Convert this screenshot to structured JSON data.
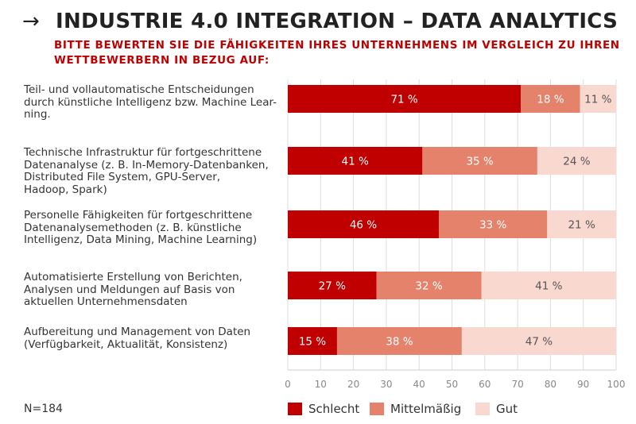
{
  "header": {
    "arrow": "→",
    "title": "INDUSTRIE 4.0 INTEGRATION – DATA ANALYTICS",
    "subtitle": "BITTE BEWERTEN SIE DIE FÄHIGKEITEN IHRES UNTERNEHMENS IM VERGLEICH ZU IHREN WETTBEWERBERN IN BEZUG AUF:"
  },
  "footer": {
    "sample_size": "N=184"
  },
  "colors": {
    "schlecht": "#c00000",
    "mittelmassig": "#e5826b",
    "gut": "#f9d8d0"
  },
  "chart_data": {
    "type": "bar",
    "orientation": "horizontal",
    "stacked": true,
    "categories": [
      "Teil- und vollautomatische Entscheidungen durch künstliche Intelligenz bzw. Machine Lear-ning.",
      "Technische Infrastruktur für fortgeschrittene Datenanalyse (z. B. In-Memory-Datenbanken, Distributed File System, GPU-Server, Hadoop, Spark)",
      "Personelle Fähigkeiten für fortgeschrittene Datenanalysemethoden (z. B. künstliche Intelligenz, Data Mining, Machine Learning)",
      "Automatisierte Erstellung von Berichten, Analysen und Meldungen auf Basis von aktuellen Unternehmensdaten",
      "Aufbereitung und Management von Daten (Verfügbarkeit, Aktualität, Konsistenz)"
    ],
    "category_lines": [
      [
        "Teil- und vollautomatische Entscheidungen",
        "durch künstliche Intelligenz bzw. Machine Lear-",
        "ning."
      ],
      [
        "Technische Infrastruktur für fortgeschrittene",
        "Datenanalyse (z. B. In-Memory-Datenbanken,",
        "Distributed File System, GPU-Server,",
        "Hadoop, Spark)"
      ],
      [
        "Personelle Fähigkeiten für fortgeschrittene",
        "Datenanalysemethoden (z. B. künstliche",
        "Intelligenz, Data Mining, Machine Learning)"
      ],
      [
        "Automatisierte Erstellung von Berichten,",
        "Analysen und Meldungen auf Basis von",
        "aktuellen Unternehmensdaten"
      ],
      [
        "Aufbereitung und Management von Daten",
        "(Verfügbarkeit, Aktualität, Konsistenz)"
      ]
    ],
    "series": [
      {
        "name": "Schlecht",
        "color": "#c00000",
        "values": [
          71,
          41,
          46,
          27,
          15
        ],
        "labels": [
          "71 %",
          "41 %",
          "46 %",
          "27 %",
          "15 %"
        ]
      },
      {
        "name": "Mittelmäßig",
        "color": "#e5826b",
        "values": [
          18,
          35,
          33,
          32,
          38
        ],
        "labels": [
          "18 %",
          "35 %",
          "33 %",
          "32 %",
          "38 %"
        ]
      },
      {
        "name": "Gut",
        "color": "#f9d8d0",
        "values": [
          11,
          24,
          21,
          41,
          47
        ],
        "labels": [
          "11 %",
          "24 %",
          "21 %",
          "41 %",
          "47 %"
        ]
      }
    ],
    "xlim": [
      0,
      100
    ],
    "xticks": [
      "0",
      "10",
      "20",
      "30",
      "40",
      "50",
      "60",
      "70",
      "80",
      "90",
      "100"
    ],
    "unit": "%",
    "grid": true,
    "legend_position": "bottom"
  }
}
